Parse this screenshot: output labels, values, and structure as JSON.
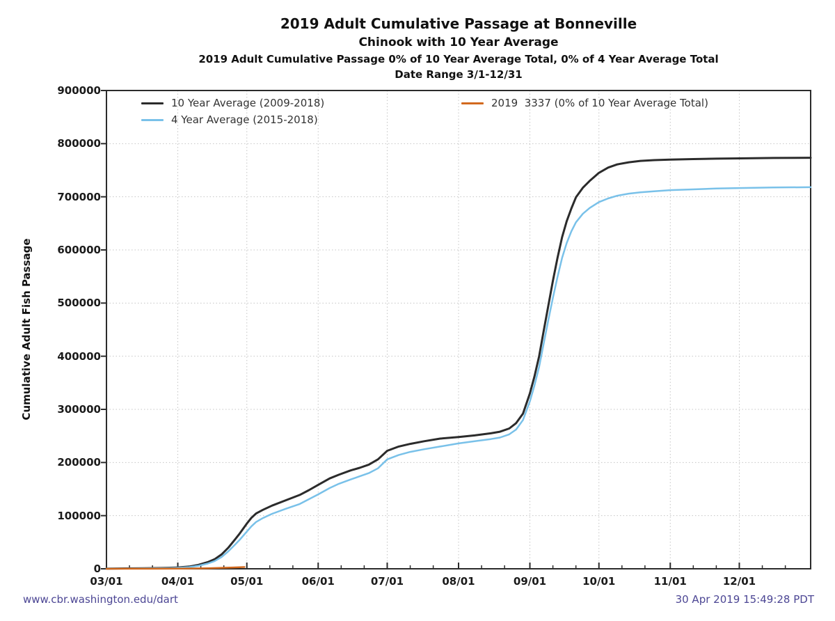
{
  "titles_note": "all chart text lives in chart_data",
  "footer": {
    "site": "www.cbr.washington.edu/dart",
    "timestamp": "30 Apr 2019 15:49:28 PDT"
  },
  "colors": {
    "axis": "#2b2b2b",
    "grid": "#c4c4c4",
    "title_text": "#111111",
    "tick_text": "#1a1a1a",
    "legend_text": "#333333",
    "footer_text": "#4c4694",
    "background": "#ffffff"
  },
  "chart_data": {
    "type": "line",
    "title": "2019 Adult Cumulative Passage at Bonneville",
    "subtitle": "Chinook with 10 Year Average",
    "subtitle2": "2019 Adult Cumulative Passage 0% of 10 Year Average Total, 0% of 4 Year Average Total",
    "subtitle3": "Date Range 3/1-12/31",
    "ylabel": "Cumulative Adult Fish Passage",
    "xlabel": "",
    "ylim": [
      0,
      900000
    ],
    "x_range_days": [
      0,
      306
    ],
    "x_axis_unit": "day offset from Mar 1 (axis spans 3/1-12/31)",
    "grid": "dotted, horizontal every 100000, vertical at month starts",
    "legend_position": "top inside plot, two columns",
    "y_ticks": [
      {
        "label": "0",
        "value": 0
      },
      {
        "label": "100000",
        "value": 100000
      },
      {
        "label": "200000",
        "value": 200000
      },
      {
        "label": "300000",
        "value": 300000
      },
      {
        "label": "400000",
        "value": 400000
      },
      {
        "label": "500000",
        "value": 500000
      },
      {
        "label": "600000",
        "value": 600000
      },
      {
        "label": "700000",
        "value": 700000
      },
      {
        "label": "800000",
        "value": 800000
      },
      {
        "label": "900000",
        "value": 900000
      }
    ],
    "x_ticks": [
      {
        "label": "03/01",
        "day": 0
      },
      {
        "label": "04/01",
        "day": 31
      },
      {
        "label": "05/01",
        "day": 61
      },
      {
        "label": "06/01",
        "day": 92
      },
      {
        "label": "07/01",
        "day": 122
      },
      {
        "label": "08/01",
        "day": 153
      },
      {
        "label": "09/01",
        "day": 184
      },
      {
        "label": "10/01",
        "day": 214
      },
      {
        "label": "11/01",
        "day": 245
      },
      {
        "label": "12/01",
        "day": 275
      }
    ],
    "minor_x_tick_days": [
      10,
      20,
      41,
      51,
      71,
      81,
      102,
      112,
      132,
      142,
      163,
      173,
      194,
      204,
      224,
      234,
      255,
      265,
      285,
      295
    ],
    "series": [
      {
        "name": "10 Year Average (2009-2018)",
        "legend_label": "10 Year Average (2009-2018)",
        "color": "#2b2b2b",
        "width": 3,
        "end_value": 773500,
        "points": [
          [
            0,
            400
          ],
          [
            8,
            600
          ],
          [
            16,
            900
          ],
          [
            24,
            1400
          ],
          [
            31,
            2500
          ],
          [
            36,
            4200
          ],
          [
            40,
            7500
          ],
          [
            44,
            12500
          ],
          [
            47,
            18000
          ],
          [
            50,
            27000
          ],
          [
            53,
            40000
          ],
          [
            56,
            56000
          ],
          [
            58,
            67000
          ],
          [
            61,
            85000
          ],
          [
            63,
            96000
          ],
          [
            65,
            104000
          ],
          [
            68,
            111000
          ],
          [
            72,
            119000
          ],
          [
            78,
            129000
          ],
          [
            84,
            139000
          ],
          [
            88,
            148000
          ],
          [
            92,
            158000
          ],
          [
            97,
            170000
          ],
          [
            101,
            177000
          ],
          [
            106,
            185000
          ],
          [
            110,
            190000
          ],
          [
            114,
            196000
          ],
          [
            118,
            206000
          ],
          [
            122,
            222000
          ],
          [
            127,
            230000
          ],
          [
            132,
            235000
          ],
          [
            138,
            240000
          ],
          [
            145,
            245000
          ],
          [
            153,
            248000
          ],
          [
            160,
            251000
          ],
          [
            167,
            255000
          ],
          [
            171,
            258000
          ],
          [
            175,
            264000
          ],
          [
            178,
            274000
          ],
          [
            181,
            292000
          ],
          [
            184,
            330000
          ],
          [
            186,
            362000
          ],
          [
            188,
            400000
          ],
          [
            190,
            448000
          ],
          [
            192,
            495000
          ],
          [
            194,
            542000
          ],
          [
            196,
            585000
          ],
          [
            198,
            624000
          ],
          [
            200,
            654000
          ],
          [
            202,
            678000
          ],
          [
            204,
            699000
          ],
          [
            207,
            717000
          ],
          [
            210,
            730000
          ],
          [
            214,
            745000
          ],
          [
            218,
            755000
          ],
          [
            222,
            761000
          ],
          [
            227,
            765000
          ],
          [
            232,
            767500
          ],
          [
            238,
            769000
          ],
          [
            245,
            770000
          ],
          [
            255,
            771000
          ],
          [
            265,
            771800
          ],
          [
            275,
            772300
          ],
          [
            290,
            773000
          ],
          [
            306,
            773500
          ]
        ]
      },
      {
        "name": "4 Year Average (2015-2018)",
        "legend_label": "4 Year Average (2015-2018)",
        "color": "#79c1e9",
        "width": 2.5,
        "end_value": 718000,
        "points": [
          [
            0,
            300
          ],
          [
            8,
            450
          ],
          [
            16,
            650
          ],
          [
            24,
            1000
          ],
          [
            31,
            1800
          ],
          [
            36,
            3200
          ],
          [
            40,
            5800
          ],
          [
            44,
            9800
          ],
          [
            47,
            14500
          ],
          [
            50,
            22000
          ],
          [
            53,
            33000
          ],
          [
            56,
            46000
          ],
          [
            58,
            55000
          ],
          [
            61,
            70000
          ],
          [
            63,
            80000
          ],
          [
            65,
            88000
          ],
          [
            68,
            95500
          ],
          [
            72,
            103500
          ],
          [
            78,
            113000
          ],
          [
            84,
            122000
          ],
          [
            88,
            131000
          ],
          [
            92,
            140000
          ],
          [
            97,
            152000
          ],
          [
            101,
            160000
          ],
          [
            106,
            168000
          ],
          [
            110,
            174000
          ],
          [
            114,
            180000
          ],
          [
            118,
            189000
          ],
          [
            122,
            206000
          ],
          [
            127,
            214000
          ],
          [
            132,
            220000
          ],
          [
            138,
            225000
          ],
          [
            145,
            230000
          ],
          [
            153,
            236000
          ],
          [
            160,
            240000
          ],
          [
            167,
            244000
          ],
          [
            171,
            247000
          ],
          [
            175,
            253000
          ],
          [
            178,
            262000
          ],
          [
            181,
            280000
          ],
          [
            184,
            315000
          ],
          [
            186,
            345000
          ],
          [
            188,
            380000
          ],
          [
            190,
            424000
          ],
          [
            192,
            468000
          ],
          [
            194,
            510000
          ],
          [
            196,
            549000
          ],
          [
            198,
            585000
          ],
          [
            200,
            613000
          ],
          [
            202,
            635000
          ],
          [
            204,
            652000
          ],
          [
            207,
            668000
          ],
          [
            210,
            679000
          ],
          [
            214,
            690000
          ],
          [
            218,
            697000
          ],
          [
            222,
            702000
          ],
          [
            227,
            706000
          ],
          [
            232,
            708500
          ],
          [
            238,
            710500
          ],
          [
            245,
            712500
          ],
          [
            255,
            714000
          ],
          [
            265,
            715500
          ],
          [
            275,
            716500
          ],
          [
            290,
            717500
          ],
          [
            306,
            718000
          ]
        ]
      },
      {
        "name": "2019",
        "legend_label": "2019  3337 (0% of 10 Year Average Total)",
        "color": "#d2691e",
        "width": 2.5,
        "total": 3337,
        "end_value": 3337,
        "points": [
          [
            0,
            30
          ],
          [
            10,
            90
          ],
          [
            20,
            160
          ],
          [
            31,
            300
          ],
          [
            38,
            600
          ],
          [
            44,
            1100
          ],
          [
            50,
            1800
          ],
          [
            55,
            2500
          ],
          [
            58,
            3000
          ],
          [
            60,
            3337
          ]
        ]
      }
    ]
  }
}
